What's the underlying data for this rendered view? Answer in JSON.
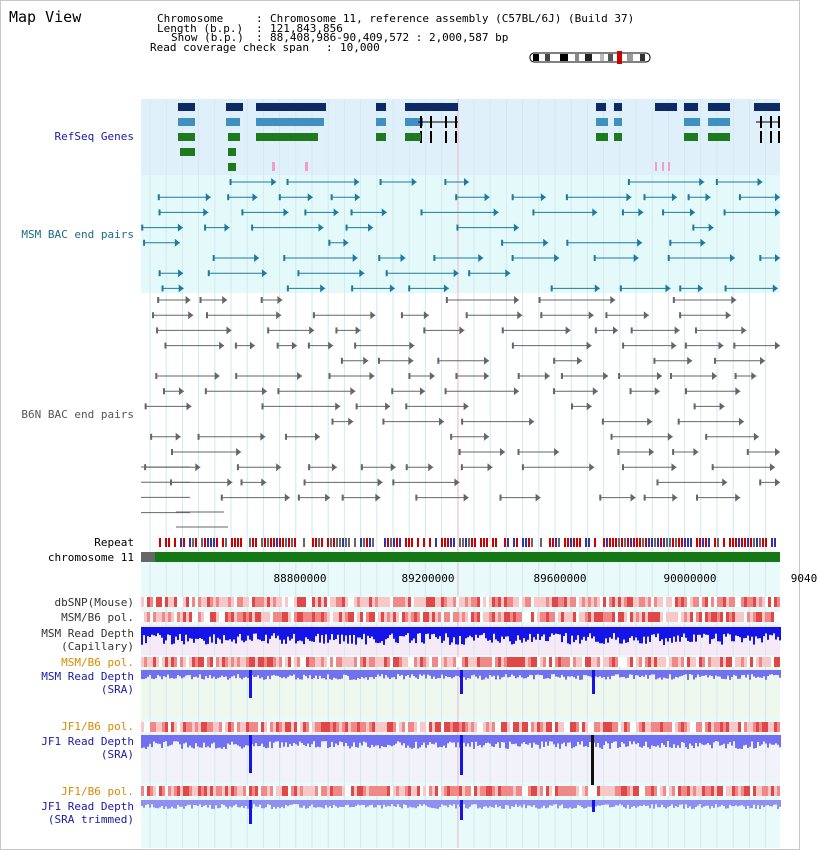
{
  "header": {
    "title": "Map View",
    "info_rows": [
      {
        "key": "Chromosome",
        "value": "Chromosome 11, reference assembly (C57BL/6J) (Build 37)"
      },
      {
        "key": "Length (b.p.)",
        "value": "121,843,856"
      },
      {
        "key": "Show (b.p.)",
        "value": "88,408,986-90,409,572 : 2,000,587 bp"
      },
      {
        "key": "Read coverage check span",
        "value": "10,000"
      }
    ]
  },
  "tracks": {
    "refseq": "RefSeq Genes",
    "msm_bac": "MSM BAC end pairs",
    "b6n_bac": "B6N BAC end pairs",
    "repeat": "Repeat",
    "chromosome": "chromosome 11",
    "dbsnp": "dbSNP(Mouse)",
    "msm_b6_pol_1": "MSM/B6 pol.",
    "msm_depth_cap_1": "MSM Read Depth",
    "msm_depth_cap_2": "(Capillary)",
    "msm_b6_pol_2": "MSM/B6 pol.",
    "msm_depth_sra_1": "MSM Read Depth",
    "msm_depth_sra_2": "(SRA)",
    "jf1_b6_pol_1": "JF1/B6 pol.",
    "jf1_depth_sra_1": "JF1 Read Depth",
    "jf1_depth_sra_2": "(SRA)",
    "jf1_b6_pol_2": "JF1/B6 pol.",
    "jf1_depth_trim_1": "JF1 Read Depth",
    "jf1_depth_trim_2": "(SRA trimmed)"
  },
  "axis": {
    "ticks": [
      "88800000",
      "89200000",
      "89600000",
      "90000000",
      "9040"
    ]
  },
  "colors": {
    "refseq_label": "#1a1aa6",
    "msm_label": "#1a6a8a",
    "b6n_label": "#555555",
    "orange_label": "#d98a00",
    "blue_label": "#1a1aa6",
    "refseq_bg": "#dff0fa",
    "msm_bg": "#e4fafa",
    "gene_navy": "#0b2a66",
    "gene_steel": "#3f8fbf",
    "gene_green": "#1e7a1e",
    "chromosome_green": "#147814",
    "depth_blue": "#1414e6",
    "depth_light": "#7070f0"
  }
}
